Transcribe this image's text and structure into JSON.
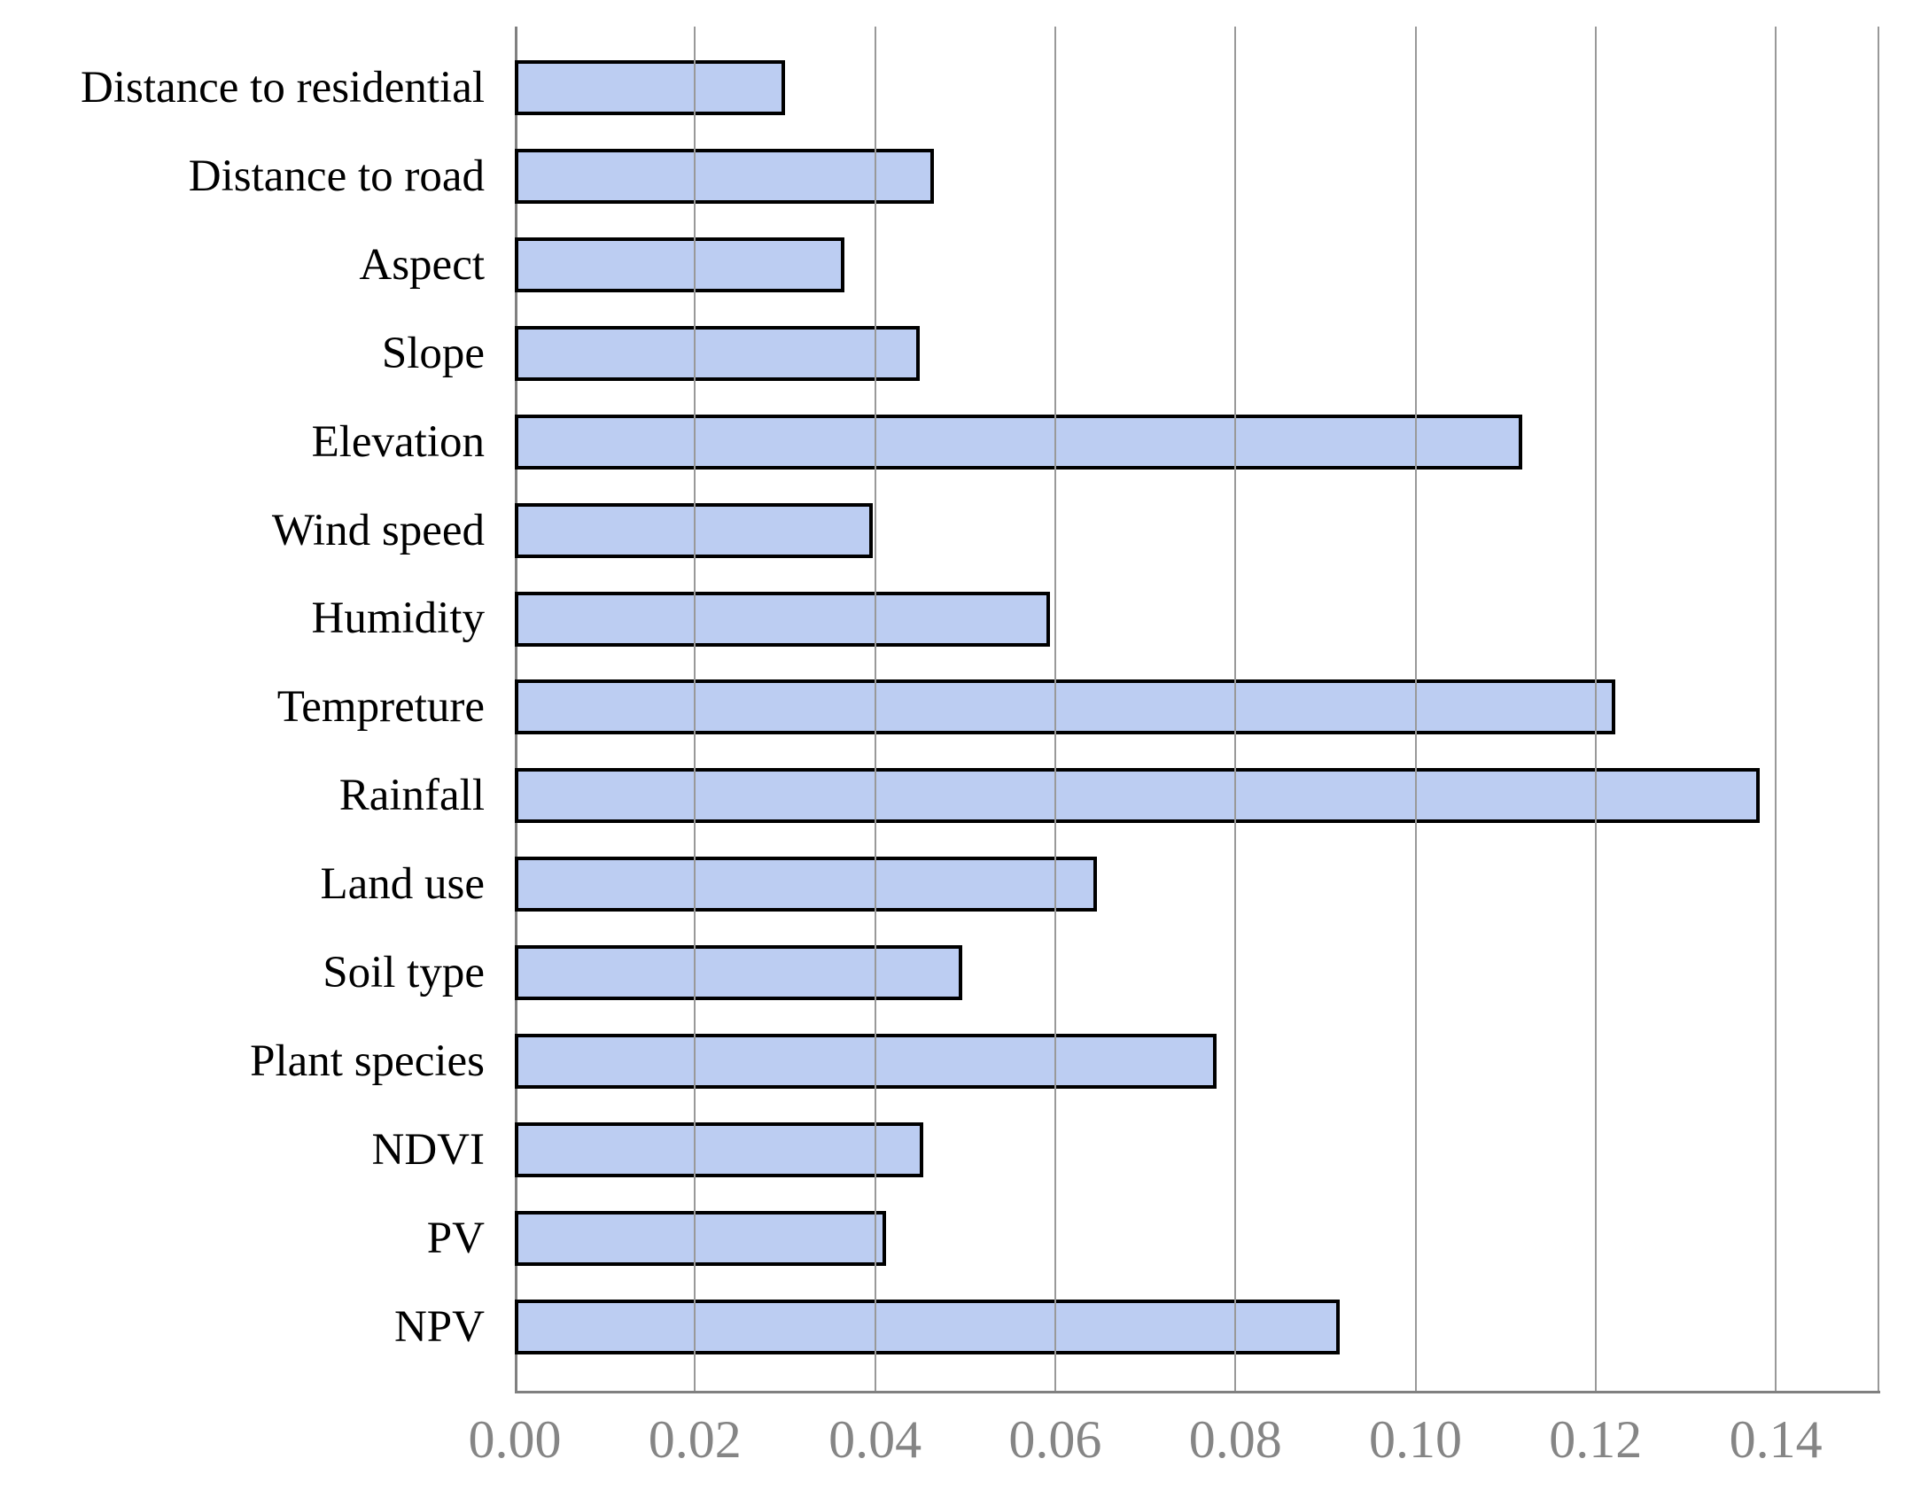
{
  "figure": {
    "background": "#ffffff",
    "title": ""
  },
  "chart_data": {
    "type": "bar",
    "orientation": "horizontal",
    "title": "",
    "xlabel": "",
    "ylabel": "",
    "legend": "none",
    "grid": "vertical gridlines at every x tick",
    "categories": [
      "Distance to residential",
      "Distance to road",
      "Aspect",
      "Slope",
      "Elevation",
      "Wind speed",
      "Humidity",
      "Tempreture",
      "Rainfall",
      "Land use",
      "Soil type",
      "Plant species",
      "NDVI",
      "PV",
      "NPV"
    ],
    "values": [
      0.03,
      0.0465,
      0.0366,
      0.045,
      0.1119,
      0.0397,
      0.0594,
      0.1222,
      0.1382,
      0.0646,
      0.0497,
      0.0779,
      0.0454,
      0.0412,
      0.0916
    ],
    "xlim": [
      0,
      0.1515
    ],
    "xticks": [
      0.0,
      0.02,
      0.04,
      0.06,
      0.08,
      0.1,
      0.12,
      0.14
    ],
    "xtick_labels": [
      "0.00",
      "0.02",
      "0.04",
      "0.06",
      "0.08",
      "0.10",
      "0.12",
      "0.14"
    ],
    "colors": {
      "bar_fill": "#bccdf2",
      "bar_border": "#000000",
      "gridline": "#999999",
      "axis_line": "#808080",
      "tick_label": "#858585",
      "category_label": "#000000"
    }
  }
}
